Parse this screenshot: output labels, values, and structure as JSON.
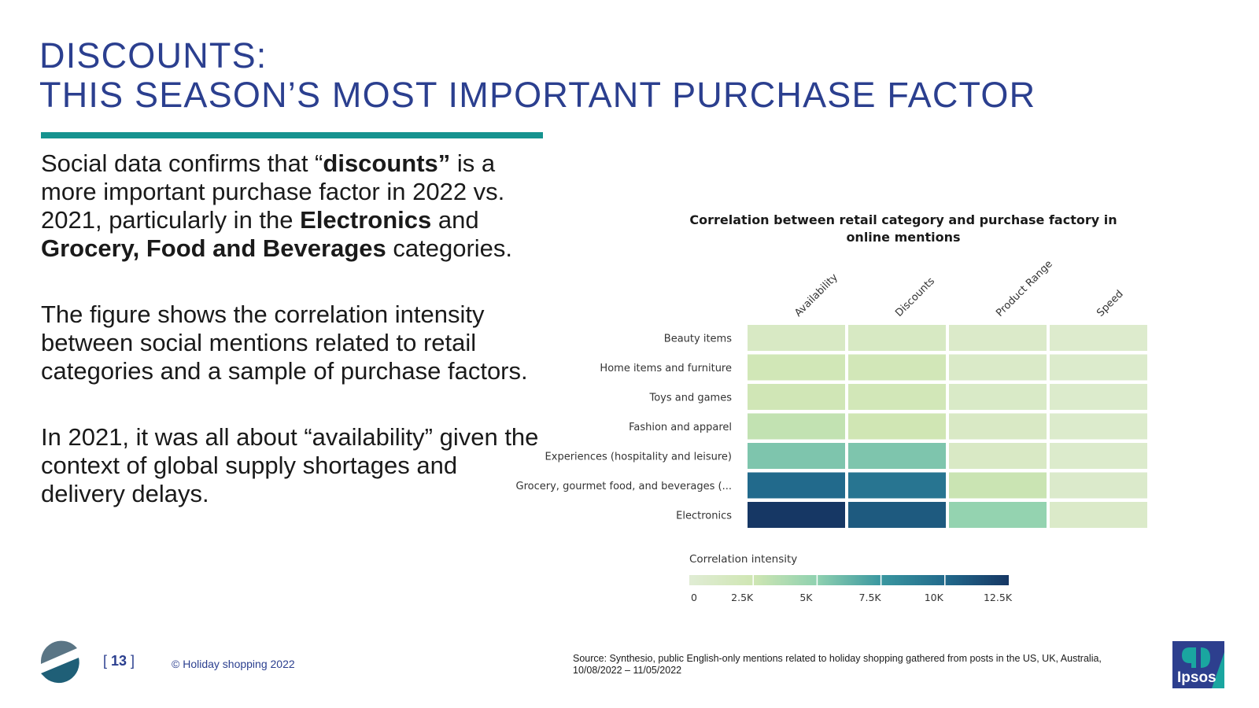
{
  "title": {
    "line1": "DISCOUNTS:",
    "line2": "THIS SEASON’S MOST IMPORTANT PURCHASE FACTOR"
  },
  "body": {
    "p1": {
      "a": "Social data confirms that “",
      "b": "discounts”",
      "c": " is a more important purchase factor in 2022 vs. 2021, particularly in the ",
      "d": "Electronics",
      "e": " and ",
      "f": "Grocery, Food and Beverages",
      "g": " categories."
    },
    "p2": "The figure shows the correlation intensity between social mentions related to retail categories and a sample of purchase factors.",
    "p3": "In 2021, it was all about “availability” given the context of global supply shortages and delivery delays."
  },
  "chart_data": {
    "type": "heatmap",
    "title": "Correlation between retail category and purchase factory in online mentions",
    "columns": [
      "Availability",
      "Discounts",
      "Product Range",
      "Speed"
    ],
    "rows": [
      "Beauty items",
      "Home items and furniture",
      "Toys and games",
      "Fashion and apparel",
      "Experiences (hospitality and leisure)",
      "Grocery, gourmet food, and beverages (...",
      "Electronics"
    ],
    "values": [
      [
        1200,
        1300,
        800,
        500
      ],
      [
        2200,
        2100,
        900,
        600
      ],
      [
        2300,
        2100,
        1000,
        600
      ],
      [
        3000,
        2400,
        1100,
        600
      ],
      [
        5500,
        5500,
        1100,
        600
      ],
      [
        10000,
        9400,
        2700,
        700
      ],
      [
        12800,
        10800,
        4800,
        800
      ]
    ],
    "colorbar": {
      "label": "Correlation intensity",
      "range": [
        0,
        12500
      ],
      "ticks": [
        0,
        2500,
        5000,
        7500,
        10000,
        12500
      ],
      "tick_labels": [
        "0",
        "2.5K",
        "5K",
        "7.5K",
        "10K",
        "12.5K"
      ]
    }
  },
  "footer": {
    "page_number": "13",
    "copyright": "© Holiday shopping 2022",
    "source": "Source: Synthesio, public English-only mentions related to holiday shopping gathered from posts in the US, UK, Australia, 10/08/2022 – 11/05/2022",
    "brand": "Ipsos"
  },
  "colors": {
    "title_blue": "#2b3f8f",
    "rule_teal": "#16938f",
    "logo_slate": "#5a7585",
    "logo_teal": "#1f5f77",
    "ipsos_blue": "#2d3f8e",
    "ipsos_teal": "#1aa6a0"
  }
}
